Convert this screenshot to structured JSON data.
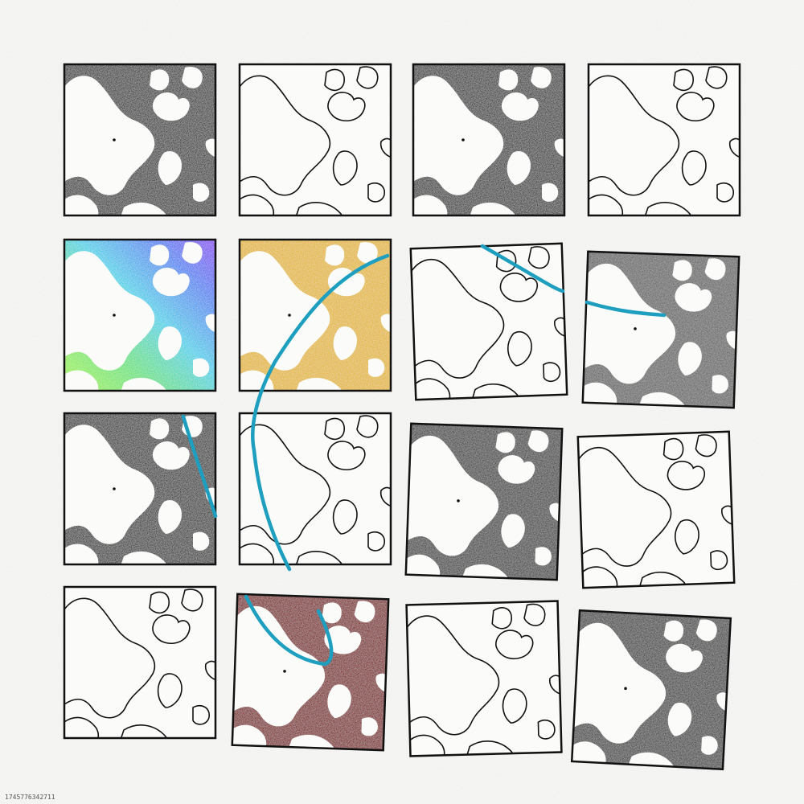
{
  "caption": "1745776342711",
  "colors": {
    "background": "#f7f7f6",
    "ink": "#111111",
    "dark_fill": "#3a3a3a",
    "gray_fill": "#5f5f5f",
    "gold_fill": "#e2b62a",
    "maroon_fill": "#7a0f0a",
    "curve": "#1e9fbf"
  },
  "grid": {
    "rows": 4,
    "columns": 4
  },
  "tiles": [
    {
      "style": "fill",
      "color": "#3a3a3a"
    },
    {
      "style": "outline"
    },
    {
      "style": "fill",
      "color": "#3a3a3a"
    },
    {
      "style": "outline"
    },
    {
      "style": "gradient",
      "palette": [
        "#a7f23a",
        "#5fe07a",
        "#3fd0e8",
        "#4a7ef0",
        "#8a3cf0"
      ]
    },
    {
      "style": "fill",
      "color": "#e2b62a"
    },
    {
      "style": "outline"
    },
    {
      "style": "fill",
      "color": "#5f5f5f"
    },
    {
      "style": "fill",
      "color": "#3a3a3a"
    },
    {
      "style": "outline"
    },
    {
      "style": "fill",
      "color": "#3a3a3a"
    },
    {
      "style": "outline"
    },
    {
      "style": "outline"
    },
    {
      "style": "fill",
      "color": "#7a0f0a"
    },
    {
      "style": "outline"
    },
    {
      "style": "fill",
      "color": "#3a3a3a"
    }
  ]
}
